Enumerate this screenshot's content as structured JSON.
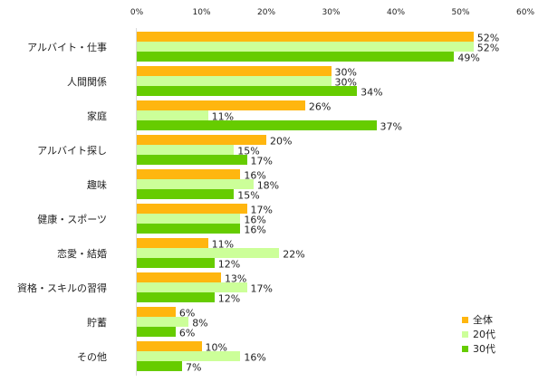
{
  "chart_data": {
    "type": "bar",
    "orientation": "horizontal",
    "title": "",
    "xlabel": "",
    "ylabel": "",
    "xlim": [
      0,
      60
    ],
    "x_ticks": [
      "0%",
      "10%",
      "20%",
      "30%",
      "40%",
      "50%",
      "60%"
    ],
    "grid": false,
    "legend_position": "bottom-right",
    "categories": [
      "アルバイト・仕事",
      "人間関係",
      "家庭",
      "アルバイト探し",
      "趣味",
      "健康・スポーツ",
      "恋愛・結婚",
      "資格・スキルの習得",
      "貯蓄",
      "その他"
    ],
    "series": [
      {
        "name": "全体",
        "color": "#ffb60f",
        "values": [
          52,
          30,
          26,
          20,
          16,
          17,
          11,
          13,
          6,
          10
        ]
      },
      {
        "name": "20代",
        "color": "#ccff99",
        "values": [
          52,
          30,
          11,
          15,
          18,
          16,
          22,
          17,
          8,
          16
        ]
      },
      {
        "name": "30代",
        "color": "#66cc00",
        "values": [
          49,
          34,
          37,
          17,
          15,
          16,
          12,
          12,
          6,
          7
        ]
      }
    ],
    "value_suffix": "%"
  }
}
